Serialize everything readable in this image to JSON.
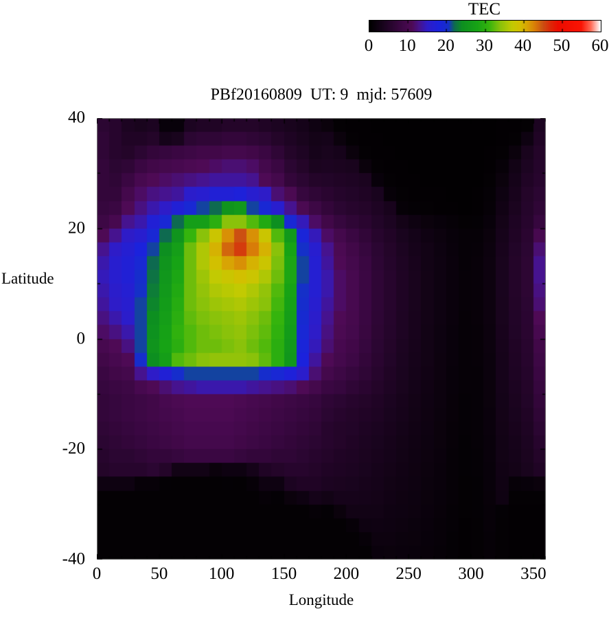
{
  "title": "PBf20160809  UT: 9  mjd: 57609",
  "colorbar": {
    "title": "TEC",
    "min": 0,
    "max": 60,
    "tick_labels": [
      "0",
      "10",
      "20",
      "30",
      "40",
      "50",
      "60"
    ]
  },
  "axes": {
    "x": {
      "label": "Longitude",
      "min": 0,
      "max": 360,
      "tick_values": [
        0,
        50,
        100,
        150,
        200,
        250,
        300,
        350
      ],
      "minor_step": 10
    },
    "y": {
      "label": "Latitude",
      "min": -40,
      "max": 40,
      "tick_values": [
        40,
        20,
        0,
        -20,
        -40
      ],
      "minor_step": 10
    }
  },
  "chart_data": {
    "type": "heatmap",
    "title": "PBf20160809  UT: 9  mjd: 57609",
    "xlabel": "Longitude",
    "ylabel": "Latitude",
    "value_label": "TEC",
    "value_range": [
      0,
      60
    ],
    "x_range": [
      0,
      360
    ],
    "y_range": [
      -40,
      40
    ],
    "lon_step": 10,
    "lat_step": 2.5,
    "grid_order": "columns[lon_index][lat_index]; lon 0..350 step 10; lat +40 (top) to -40 step -2.5",
    "palette_stops": [
      [
        0,
        "#000000"
      ],
      [
        4,
        "#1c0421"
      ],
      [
        8,
        "#3a0742"
      ],
      [
        11,
        "#4e0a55"
      ],
      [
        13,
        "#46138f"
      ],
      [
        15,
        "#2e1cc8"
      ],
      [
        18,
        "#1b22dc"
      ],
      [
        20.5,
        "#1530c8"
      ],
      [
        22,
        "#0e6a50"
      ],
      [
        24,
        "#0d8f20"
      ],
      [
        28,
        "#17a315"
      ],
      [
        31,
        "#35b40d"
      ],
      [
        34,
        "#8ac20a"
      ],
      [
        37,
        "#c2ca02"
      ],
      [
        39,
        "#d2c000"
      ],
      [
        41,
        "#d8a404"
      ],
      [
        43,
        "#d87c08"
      ],
      [
        45,
        "#cc5012"
      ],
      [
        47,
        "#dc2808"
      ],
      [
        49,
        "#ec0c00"
      ],
      [
        55,
        "#fa1404"
      ],
      [
        57.5,
        "#ff6a55"
      ],
      [
        60,
        "#ffffff"
      ]
    ],
    "columns": [
      [
        6,
        6.5,
        6.5,
        7,
        7,
        7,
        7.5,
        8.5,
        11,
        13,
        14,
        14.5,
        14,
        13.5,
        12.5,
        11.5,
        10,
        9,
        8,
        7.5,
        7,
        7,
        6.5,
        6,
        5.5,
        5,
        2,
        0.5,
        0.5,
        0.5,
        0.5,
        0.5
      ],
      [
        5.5,
        5.5,
        5.5,
        6,
        6.5,
        7,
        8,
        10,
        13,
        15,
        16,
        16,
        15.5,
        15,
        14,
        12.5,
        11,
        10,
        9,
        8,
        7.5,
        7.5,
        7,
        6.5,
        6,
        5.5,
        2,
        0.5,
        0.5,
        0.5,
        0.5,
        0.5
      ],
      [
        4,
        4.5,
        5,
        6.5,
        8,
        9.5,
        11,
        13,
        15,
        16.5,
        17,
        17,
        16.5,
        16,
        15.5,
        14,
        12.5,
        11,
        9.5,
        8.5,
        8,
        8,
        7.5,
        7,
        6,
        5.5,
        2,
        0.5,
        0.5,
        0.5,
        0.5,
        0.5
      ],
      [
        3.5,
        4.5,
        6,
        8,
        10,
        11.5,
        12.5,
        14,
        16,
        18,
        19,
        20,
        20.5,
        21,
        21,
        21,
        21,
        20,
        13,
        10,
        8.5,
        8.5,
        8,
        7.5,
        6.5,
        5.5,
        1,
        0.5,
        0.5,
        0.5,
        0.5,
        0.5
      ],
      [
        4,
        5,
        7,
        9,
        11,
        12.5,
        14,
        17,
        19,
        21,
        22,
        22.5,
        23,
        23.5,
        24,
        24.5,
        25,
        24,
        15,
        11,
        9,
        9,
        8.5,
        8,
        7,
        6,
        1,
        0.5,
        0.5,
        0.5,
        0.5,
        0.5
      ],
      [
        1.2,
        3,
        7.5,
        9.5,
        11.5,
        13,
        15,
        19,
        22,
        24,
        25,
        25.5,
        26,
        26.5,
        27,
        27.5,
        28,
        27,
        17,
        12,
        10,
        9.5,
        9,
        8.5,
        7,
        5,
        0.6,
        0.5,
        0.5,
        0.5,
        0.5,
        0.5
      ],
      [
        1.2,
        3.5,
        8,
        10,
        12,
        13.5,
        17,
        22,
        25,
        27,
        28,
        28.5,
        29,
        29.5,
        30,
        30.5,
        30,
        32,
        20,
        13,
        10.5,
        10,
        9.5,
        9,
        7.5,
        2.5,
        0.5,
        0.5,
        0.5,
        0.5,
        0.5,
        0.5
      ],
      [
        4,
        6,
        8.5,
        10.5,
        12.5,
        15.5,
        19,
        27,
        31,
        33,
        33,
        33,
        33,
        33,
        32.5,
        32,
        32,
        33,
        21,
        13.5,
        11,
        10.5,
        10,
        9.5,
        8,
        2.5,
        0.5,
        0.5,
        0.5,
        0.5,
        0.5,
        0.5
      ],
      [
        4.5,
        6.5,
        9,
        11,
        13,
        16,
        21,
        27,
        34,
        36,
        36,
        35,
        34.5,
        34,
        33.5,
        33,
        33,
        34,
        21,
        14,
        11,
        10.5,
        10,
        9.5,
        8,
        2.5,
        0.5,
        0.5,
        0.5,
        0.5,
        0.5,
        0.5
      ],
      [
        4.5,
        6.5,
        9,
        11.5,
        13.5,
        17,
        22,
        30,
        38,
        40,
        39,
        37,
        36,
        35,
        34,
        33.5,
        33,
        34.5,
        21,
        14,
        11,
        10.5,
        10,
        9.5,
        8,
        1.5,
        0.5,
        0.5,
        0.5,
        0.5,
        0.5,
        0.5
      ],
      [
        5,
        7,
        9.5,
        12,
        13.5,
        17,
        25,
        34,
        42,
        44,
        41,
        38,
        36.5,
        35.5,
        34.5,
        34,
        33.5,
        34.5,
        21,
        14,
        11,
        10.5,
        10,
        9.5,
        8,
        2,
        0.6,
        0.5,
        0.5,
        0.5,
        0.5,
        0.5
      ],
      [
        5,
        7,
        9.5,
        12,
        13.5,
        17.5,
        26,
        34,
        45,
        46,
        42,
        39,
        37,
        36,
        35,
        34.5,
        34,
        34.5,
        21,
        14,
        10.5,
        10,
        9.5,
        9,
        7.5,
        2,
        0.5,
        0.5,
        0.5,
        0.5,
        0.5,
        0.5
      ],
      [
        5,
        6.5,
        9,
        11.5,
        13,
        16,
        21,
        32,
        42,
        43,
        40,
        38,
        36,
        35,
        34,
        33.5,
        33,
        34,
        21,
        13.5,
        10,
        9.5,
        9,
        8.5,
        7,
        3,
        1,
        0.5,
        0.5,
        0.5,
        0.5,
        0.5
      ],
      [
        4.5,
        6,
        8,
        9.5,
        11,
        15,
        19,
        29,
        38,
        40,
        38,
        36,
        34.5,
        34,
        33,
        32.5,
        32,
        32.5,
        20,
        13,
        9.5,
        9,
        8.5,
        8,
        7,
        4.5,
        2,
        0.8,
        0.5,
        0.5,
        0.5,
        0.5
      ],
      [
        4,
        5,
        6.5,
        8,
        9.5,
        12,
        16,
        24,
        32,
        34,
        33.5,
        33,
        32,
        31.5,
        31,
        30.5,
        30,
        30,
        19,
        12.5,
        9,
        8.5,
        8,
        7.5,
        6.5,
        5,
        2,
        0.6,
        0.5,
        0.5,
        0.5,
        0.5
      ],
      [
        3.5,
        4.2,
        5,
        6,
        7,
        10.5,
        13,
        19,
        26,
        28,
        28.5,
        28.5,
        28,
        27.5,
        27,
        26.5,
        26,
        25.5,
        17.5,
        12,
        8.5,
        8,
        7.5,
        7,
        6.5,
        5.5,
        4,
        1.5,
        0.5,
        0.5,
        0.5,
        0.5
      ],
      [
        3,
        3.5,
        4.2,
        5,
        6,
        7.5,
        10.5,
        14.5,
        18.5,
        20.5,
        21,
        21,
        20.5,
        20,
        19.5,
        19,
        18.5,
        18,
        15.5,
        11,
        8,
        7.5,
        7,
        6.5,
        6,
        5.5,
        4.5,
        2,
        0.5,
        0.5,
        0.5,
        0.5
      ],
      [
        2.2,
        2.8,
        3.2,
        3.8,
        5,
        6.5,
        8.5,
        11.5,
        14.5,
        16,
        16.5,
        16.5,
        16.5,
        16,
        15.5,
        15,
        14.5,
        13.5,
        12,
        9.5,
        7.5,
        7,
        6.5,
        6,
        5.5,
        5,
        4.5,
        3,
        0.8,
        0.5,
        0.5,
        0.5
      ],
      [
        1.5,
        3,
        3.5,
        4,
        4.8,
        5.8,
        7,
        9,
        11.5,
        13,
        13.5,
        14,
        14,
        13.5,
        13,
        12.5,
        12,
        11,
        9.5,
        8,
        6.5,
        6,
        5.5,
        5.5,
        5,
        4.5,
        4,
        2.5,
        0.6,
        0.5,
        0.5,
        0.5
      ],
      [
        0.5,
        1.5,
        3.2,
        3.8,
        4.5,
        5.2,
        6,
        7.5,
        9.5,
        10.5,
        11,
        11.5,
        11.5,
        11.5,
        11,
        10.5,
        10,
        9.5,
        8.5,
        7.5,
        6,
        5.5,
        5,
        5,
        4.5,
        4.2,
        3.8,
        3.2,
        1.5,
        0.5,
        0.5,
        0.5
      ],
      [
        0.4,
        0.5,
        1.5,
        3.5,
        4.2,
        4.8,
        5.5,
        6.5,
        8,
        9,
        9.5,
        10,
        10,
        10,
        9.8,
        9.5,
        9,
        8.5,
        7.5,
        6.5,
        5.5,
        5,
        4.8,
        4.5,
        4.2,
        4,
        3.6,
        3.2,
        2.5,
        1,
        0.5,
        0.5
      ],
      [
        0.4,
        0.4,
        0.5,
        1.5,
        3.8,
        4.4,
        5,
        5.8,
        6.8,
        7.5,
        8,
        8.2,
        8.2,
        8.2,
        8,
        7.8,
        7.5,
        7,
        6.5,
        5.8,
        5,
        4.6,
        4.2,
        4,
        3.8,
        3.6,
        3.3,
        3,
        2.6,
        2,
        1,
        0.5
      ],
      [
        0.3,
        0.4,
        0.4,
        0.5,
        1.2,
        3.6,
        4.2,
        4.8,
        5.5,
        6,
        6.3,
        6.5,
        6.5,
        6.5,
        6.4,
        6.2,
        6,
        5.8,
        5.4,
        5,
        4.5,
        4.2,
        3.9,
        3.6,
        3.4,
        3.2,
        3,
        2.8,
        2.5,
        2.2,
        1.8,
        1.4
      ],
      [
        0.3,
        0.3,
        0.4,
        0.4,
        0.5,
        1,
        3.4,
        4,
        4.6,
        5,
        5.2,
        5.4,
        5.4,
        5.4,
        5.3,
        5.2,
        5,
        4.8,
        4.5,
        4.2,
        3.9,
        3.6,
        3.4,
        3.2,
        3,
        2.8,
        2.6,
        2.4,
        2.2,
        2,
        1.8,
        1.5
      ],
      [
        0.3,
        0.3,
        0.3,
        0.4,
        0.4,
        0.5,
        0.9,
        2.8,
        3.6,
        4,
        4.2,
        4.4,
        4.4,
        4.4,
        4.3,
        4.2,
        4,
        3.9,
        3.7,
        3.5,
        3.3,
        3.1,
        2.9,
        2.7,
        2.6,
        2.4,
        2.3,
        2.1,
        2,
        1.8,
        1.6,
        1.4
      ],
      [
        0.3,
        0.3,
        0.3,
        0.3,
        0.4,
        0.4,
        0.6,
        2,
        2.9,
        3.2,
        3.4,
        3.5,
        3.5,
        3.5,
        3.4,
        3.4,
        3.3,
        3.2,
        3,
        2.9,
        2.7,
        2.6,
        2.4,
        2.3,
        2.2,
        2.1,
        2,
        1.9,
        1.8,
        1.6,
        1.5,
        1.3
      ],
      [
        0.3,
        0.3,
        0.3,
        0.3,
        0.3,
        0.4,
        0.5,
        1.5,
        2.2,
        2.5,
        2.6,
        2.7,
        2.7,
        2.7,
        2.7,
        2.6,
        2.6,
        2.5,
        2.4,
        2.3,
        2.2,
        2.1,
        2,
        1.9,
        1.8,
        1.7,
        1.6,
        1.5,
        1.4,
        1.3,
        1.2,
        1.1
      ],
      [
        0.3,
        0.3,
        0.3,
        0.3,
        0.3,
        0.4,
        0.4,
        1.2,
        1.7,
        1.9,
        2,
        2,
        2,
        2,
        2,
        1.9,
        1.9,
        1.8,
        1.8,
        1.7,
        1.7,
        1.6,
        1.5,
        1.5,
        1.4,
        1.3,
        1.3,
        1.2,
        1.1,
        1,
        1,
        0.9
      ],
      [
        0.3,
        0.3,
        0.3,
        0.3,
        0.3,
        0.3,
        0.4,
        0.8,
        1.2,
        1.3,
        1.4,
        1.4,
        1.4,
        1.4,
        1.4,
        1.3,
        1.3,
        1.3,
        1.2,
        1.2,
        1.1,
        1.1,
        1,
        1,
        0.9,
        0.9,
        0.8,
        0.8,
        0.7,
        0.7,
        0.6,
        0.6
      ],
      [
        0.3,
        0.3,
        0.3,
        0.3,
        0.3,
        0.3,
        0.3,
        0.5,
        0.8,
        0.9,
        0.9,
        1,
        1,
        1,
        0.9,
        0.9,
        0.9,
        0.8,
        0.8,
        0.8,
        0.7,
        0.7,
        0.7,
        0.6,
        0.6,
        0.6,
        0.5,
        0.5,
        0.5,
        0.4,
        0.4,
        0.4
      ],
      [
        0.3,
        0.3,
        0.3,
        0.3,
        0.3,
        0.4,
        0.4,
        0.6,
        0.9,
        1,
        1.1,
        1.1,
        1.1,
        1.1,
        1.1,
        1,
        1,
        1,
        0.9,
        0.9,
        0.9,
        0.8,
        0.8,
        0.8,
        0.7,
        0.7,
        0.6,
        0.6,
        0.6,
        0.5,
        0.5,
        0.5
      ],
      [
        0.3,
        0.3,
        0.4,
        0.4,
        0.5,
        0.7,
        0.9,
        1.2,
        1.5,
        1.7,
        1.8,
        1.8,
        1.8,
        1.8,
        1.8,
        1.7,
        1.7,
        1.6,
        1.6,
        1.5,
        1.5,
        1.4,
        1.4,
        1.3,
        1.3,
        1.2,
        1.2,
        1.1,
        1,
        1,
        0.9,
        0.9
      ],
      [
        0.4,
        0.4,
        0.5,
        1,
        1.5,
        2,
        2.4,
        2.8,
        3.2,
        3.4,
        3.5,
        3.6,
        3.6,
        3.5,
        3.5,
        3.4,
        3.3,
        3.2,
        3.1,
        3,
        2.9,
        2.8,
        2.7,
        2.6,
        2.5,
        2.4,
        2.3,
        2.2,
        0.6,
        0.5,
        0.5,
        0.5
      ],
      [
        0.4,
        0.5,
        1.5,
        2.5,
        3,
        3.4,
        3.8,
        4.2,
        4.5,
        4.8,
        5,
        5,
        5,
        4.9,
        4.8,
        4.7,
        4.5,
        4.4,
        4.2,
        4,
        3.8,
        3.6,
        3.4,
        3.2,
        3,
        2.8,
        1,
        0.5,
        0.4,
        0.4,
        0.4,
        0.4
      ],
      [
        0.5,
        2,
        3.5,
        4,
        4.5,
        5,
        5.2,
        5.5,
        5.8,
        6,
        6.2,
        6.2,
        6.2,
        6,
        5.9,
        5.8,
        5.6,
        5.4,
        5.2,
        5,
        4.8,
        4.5,
        4.3,
        4,
        3.8,
        3.5,
        1.2,
        0.5,
        0.4,
        0.4,
        0.4,
        0.4
      ],
      [
        4,
        4.5,
        5,
        5.2,
        5.5,
        6,
        6.5,
        7.5,
        10,
        12,
        13,
        13,
        12.5,
        12,
        11,
        10,
        9,
        8.5,
        8,
        7.5,
        7,
        6.5,
        6,
        5.5,
        5,
        4.5,
        1.5,
        0.5,
        0.4,
        0.4,
        0.4,
        0.4
      ]
    ]
  }
}
